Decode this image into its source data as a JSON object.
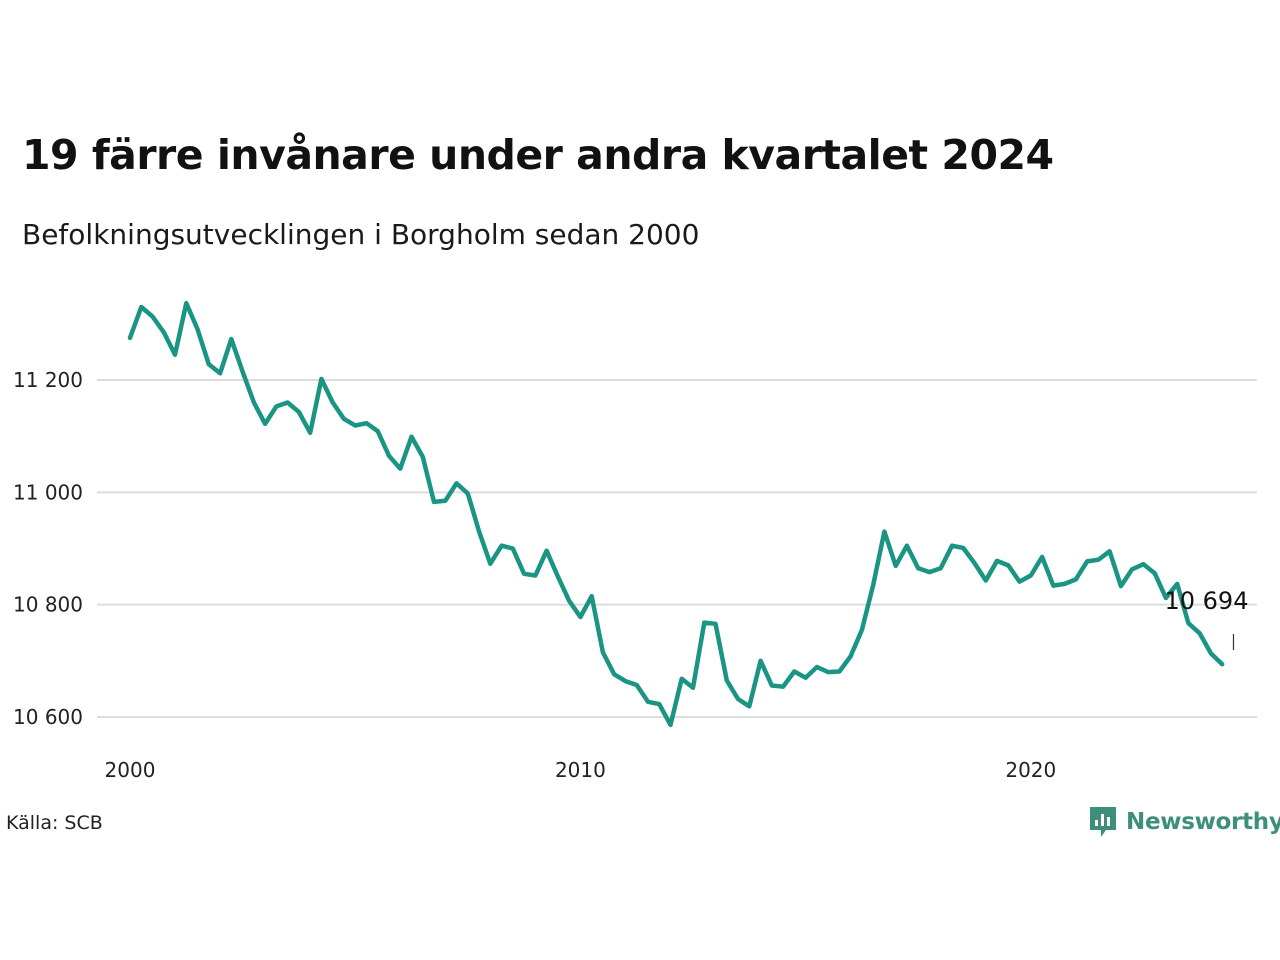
{
  "title": "19 färre invånare under andra kvartalet 2024",
  "subtitle": "Befolkningsutvecklingen i Borgholm sedan 2000",
  "source": "Källa: SCB",
  "brand": {
    "name": "Newsworthy",
    "color": "#3d8f7c",
    "icon": "newsworthy-logo-icon"
  },
  "line_color": "#1a9483",
  "grid_color": "#dcdcdc",
  "chart_data": {
    "type": "line",
    "x_axis": {
      "range": [
        2000,
        2025
      ],
      "ticks": [
        2000,
        2010,
        2020
      ]
    },
    "y_axis": {
      "range": [
        10550,
        11450
      ],
      "ticks": [
        10600,
        10800,
        11000,
        11200
      ],
      "tick_labels": [
        "10 600",
        "10 800",
        "11 000",
        "11 200"
      ]
    },
    "grid": true,
    "annotation": {
      "text": "10 694",
      "x": 2024.5,
      "y": 10694
    },
    "series": [
      {
        "x": [
          2000.0,
          2000.25,
          2000.5,
          2000.75,
          2001.0,
          2001.25,
          2001.5,
          2001.75,
          2002.0,
          2002.25,
          2002.5,
          2002.75,
          2003.0,
          2003.25,
          2003.5,
          2003.75,
          2004.0,
          2004.25,
          2004.5,
          2004.75,
          2005.0,
          2005.25,
          2005.5,
          2005.75,
          2006.0,
          2006.25,
          2006.5,
          2006.75,
          2007.0,
          2007.25,
          2007.5,
          2007.75,
          2008.0,
          2008.25,
          2008.5,
          2008.75,
          2009.0,
          2009.25,
          2009.5,
          2009.75,
          2010.0,
          2010.25,
          2010.5,
          2010.75,
          2011.0,
          2011.25,
          2011.5,
          2011.75,
          2012.0,
          2012.25,
          2012.5,
          2012.75,
          2013.0,
          2013.25,
          2013.5,
          2013.75,
          2014.0,
          2014.25,
          2014.5,
          2014.75,
          2015.0,
          2015.25,
          2015.5,
          2015.75,
          2016.0,
          2016.25,
          2016.5,
          2016.75,
          2017.0,
          2017.25,
          2017.5,
          2017.75,
          2018.0,
          2018.25,
          2018.5,
          2018.75,
          2019.0,
          2019.25,
          2019.5,
          2019.75,
          2020.0,
          2020.25,
          2020.5,
          2020.75,
          2021.0,
          2021.25,
          2021.5,
          2021.75,
          2022.0,
          2022.25,
          2022.5,
          2022.75,
          2023.0,
          2023.25,
          2023.5,
          2023.75,
          2024.0,
          2024.25
        ],
        "y": [
          11275,
          11330,
          11313,
          11285,
          11245,
          11337,
          11290,
          11228,
          11212,
          11273,
          11215,
          11160,
          11122,
          11153,
          11160,
          11143,
          11106,
          11202,
          11160,
          11131,
          11119,
          11123,
          11109,
          11065,
          11042,
          11099,
          11063,
          10983,
          10985,
          11016,
          10998,
          10930,
          10873,
          10905,
          10900,
          10855,
          10852,
          10896,
          10850,
          10807,
          10778,
          10815,
          10715,
          10676,
          10664,
          10657,
          10627,
          10623,
          10586,
          10668,
          10652,
          10768,
          10766,
          10665,
          10632,
          10619,
          10700,
          10656,
          10654,
          10681,
          10670,
          10689,
          10680,
          10681,
          10708,
          10755,
          10835,
          10930,
          10869,
          10905,
          10865,
          10858,
          10865,
          10905,
          10901,
          10874,
          10843,
          10878,
          10870,
          10841,
          10852,
          10885,
          10834,
          10837,
          10845,
          10877,
          10880,
          10895,
          10833,
          10863,
          10872,
          10856,
          10812,
          10837,
          10767,
          10749,
          10713,
          10694
        ]
      }
    ]
  }
}
